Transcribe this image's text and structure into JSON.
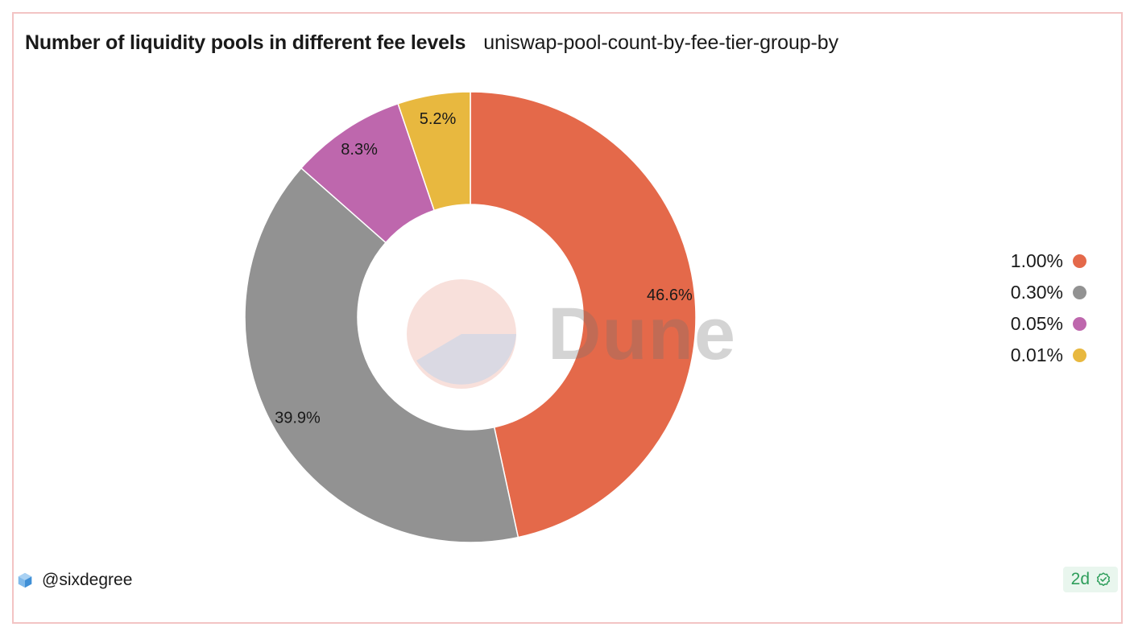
{
  "header": {
    "title": "Number of liquidity pools in different fee levels",
    "subtitle": "uniswap-pool-count-by-fee-tier-group-by"
  },
  "chart_data": {
    "type": "pie",
    "variant": "donut",
    "title": "Number of liquidity pools in different fee levels",
    "subtitle": "uniswap-pool-count-by-fee-tier-group-by",
    "categories": [
      "1.00%",
      "0.30%",
      "0.05%",
      "0.01%"
    ],
    "values": [
      46.6,
      39.9,
      8.3,
      5.2
    ],
    "value_labels": [
      "46.6%",
      "39.9%",
      "8.3%",
      "5.2%"
    ],
    "colors": [
      "#e4694a",
      "#929292",
      "#be67ad",
      "#e8b83f"
    ],
    "legend_placement": "right",
    "watermark": "Dune"
  },
  "footer": {
    "username": "@sixdegree",
    "user_icon": "cube-icon",
    "freshness": "2d",
    "freshness_icon": "check-badge-icon"
  }
}
